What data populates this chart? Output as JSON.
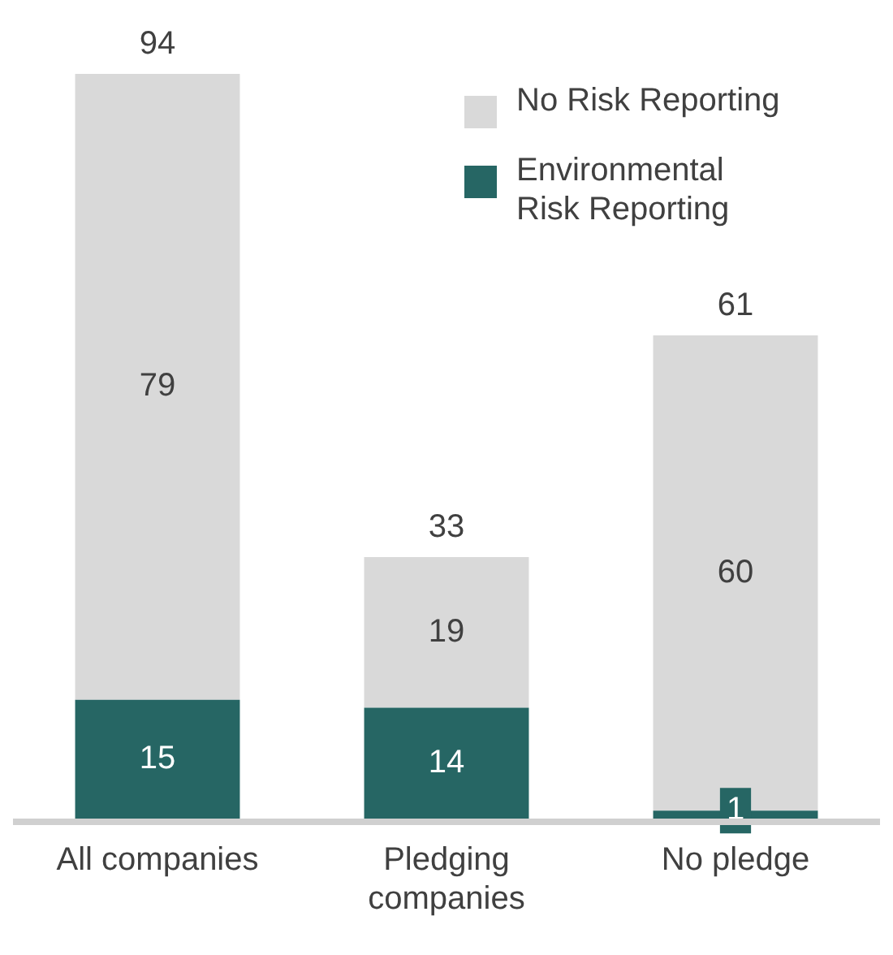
{
  "chart_data": {
    "type": "bar",
    "stacked": true,
    "categories": [
      "All companies",
      "Pledging companies",
      "No pledge"
    ],
    "series": [
      {
        "name": "Environmental Risk Reporting",
        "color": "#266664",
        "values": [
          15,
          14,
          1
        ]
      },
      {
        "name": "No Risk Reporting",
        "color": "#d9d9d9",
        "values": [
          79,
          19,
          60
        ]
      }
    ],
    "data_labels": true,
    "totals": [
      "94",
      "33",
      "61"
    ],
    "legend": "top right",
    "tick_labels": "x",
    "grid": false
  }
}
